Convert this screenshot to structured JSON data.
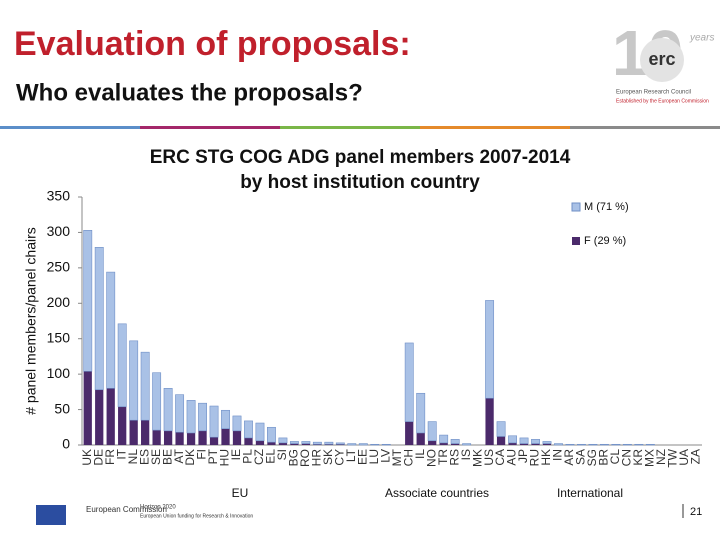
{
  "header": {
    "title": "Evaluation of proposals:",
    "subtitle": "Who evaluates the proposals?",
    "logo": "erc",
    "logo_sub": "European Research Council",
    "logo_sub2": "Established by the European Commission",
    "logo_years": "years"
  },
  "footer": {
    "commission": "European Commission",
    "horizon": "Horizon 2020",
    "horizon_sub": "European Union funding for Research & Innovation",
    "page": "21"
  },
  "chart_data": {
    "type": "stacked_bar",
    "title": "ERC STG COG ADG panel members 2007-2014",
    "subtitle": "by host institution country",
    "y_label": "# panel members/panel chairs",
    "annotations": [
      "EU",
      "Associate countries",
      "International"
    ],
    "legend": "upper right",
    "categories": [
      "UK",
      "DE",
      "FR",
      "IT",
      "NL",
      "ES",
      "SE",
      "BE",
      "AT",
      "DK",
      "FI",
      "PT",
      "HU",
      "IE",
      "PL",
      "CZ",
      "EL",
      "SI",
      "BG",
      "RO",
      "HR",
      "SK",
      "CY",
      "LT",
      "EE",
      "LU",
      "LV",
      "MT",
      "CH",
      "IL",
      "NO",
      "TR",
      "RS",
      "IS",
      "MK",
      "US",
      "CA",
      "AU",
      "JP",
      "RU",
      "HK",
      "IN",
      "AR",
      "SA",
      "SG",
      "BR",
      "CL",
      "CN",
      "KR",
      "MX",
      "NZ",
      "TW",
      "UA",
      "ZA"
    ],
    "series": [
      {
        "name": "M (71 %)",
        "color": "#a9c1e6",
        "values": [
          199,
          201,
          164,
          117,
          112,
          96,
          81,
          60,
          53,
          46,
          39,
          44,
          26,
          21,
          24,
          25,
          21,
          7,
          3,
          3,
          3,
          3,
          2,
          2,
          2,
          1,
          1,
          0,
          111,
          56,
          27,
          11,
          6,
          2,
          0,
          138,
          21,
          10,
          8,
          6,
          3,
          2,
          1,
          1,
          1,
          1,
          1,
          1,
          1,
          1,
          0,
          0,
          0,
          0
        ]
      },
      {
        "name": "F (29 %)",
        "color": "#4b2a6b",
        "values": [
          104,
          78,
          80,
          54,
          35,
          35,
          21,
          20,
          18,
          17,
          20,
          11,
          23,
          20,
          10,
          6,
          4,
          3,
          2,
          2,
          1,
          1,
          1,
          0,
          0,
          0,
          0,
          0,
          33,
          17,
          6,
          3,
          2,
          0,
          0,
          66,
          12,
          3,
          2,
          2,
          2,
          0,
          0,
          0,
          0,
          0,
          0,
          0,
          0,
          0,
          0,
          0,
          0,
          0
        ]
      }
    ],
    "ylim": [
      0,
      350
    ],
    "yticks": [
      0,
      50,
      100,
      150,
      200,
      250,
      300,
      350
    ]
  }
}
